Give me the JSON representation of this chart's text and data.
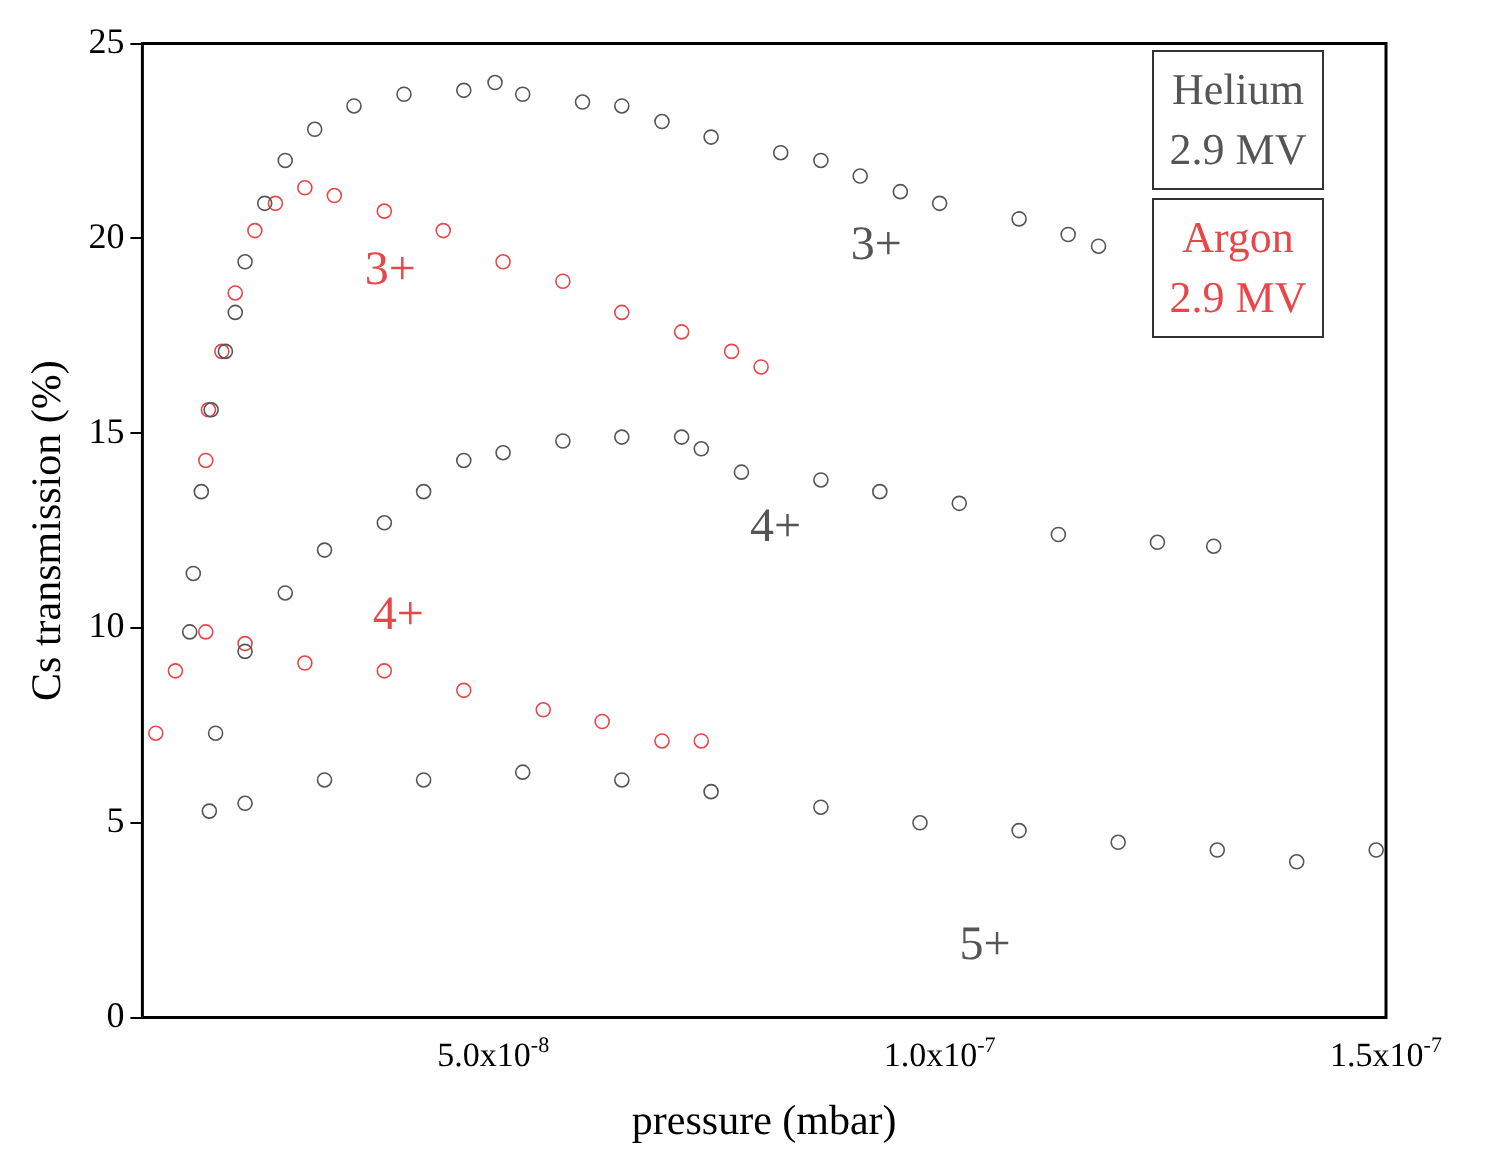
{
  "chart_data": {
    "type": "scatter",
    "xlabel": "pressure (mbar)",
    "ylabel": "Cs transmission (%)",
    "xlim": [
      1.07e-08,
      1.5e-07
    ],
    "xticks": [
      {
        "value": 5e-08,
        "label": "5.0x10$^{-8}$"
      },
      {
        "value": 1e-07,
        "label": "1.0x10$^{-7}$"
      },
      {
        "value": 1.5e-07,
        "label": "1.5x10$^{-7}$"
      }
    ],
    "ylim": [
      0,
      25
    ],
    "yticks": [
      0,
      5,
      10,
      15,
      20,
      25
    ],
    "grid": false,
    "legend": false,
    "marker": "circle",
    "annotations": [
      "Helium 2.9 MV",
      "Argon 2.9 MV"
    ],
    "series": [
      {
        "name": "3+",
        "color": "#555555",
        "x": [
          1.6e-08,
          1.64e-08,
          1.73e-08,
          1.84e-08,
          2e-08,
          2.11e-08,
          2.22e-08,
          2.44e-08,
          2.67e-08,
          3e-08,
          3.44e-08,
          4e-08,
          4.67e-08,
          5.02e-08,
          5.33e-08,
          6e-08,
          6.44e-08,
          6.89e-08,
          7.44e-08,
          8.22e-08,
          8.67e-08,
          9.11e-08,
          9.56e-08,
          1e-07,
          1.089e-07,
          1.144e-07,
          1.178e-07
        ],
        "values": [
          9.9,
          11.4,
          13.5,
          15.6,
          17.1,
          18.1,
          19.4,
          20.9,
          22.0,
          22.8,
          23.4,
          23.7,
          23.8,
          24.0,
          23.7,
          23.5,
          23.4,
          23.0,
          22.6,
          22.2,
          22.0,
          21.6,
          21.2,
          20.9,
          20.5,
          20.1,
          19.8
        ]
      },
      {
        "name": "4+",
        "color": "#555555",
        "x": [
          1.89e-08,
          2.22e-08,
          2.67e-08,
          3.11e-08,
          3.78e-08,
          4.22e-08,
          4.67e-08,
          5.11e-08,
          5.78e-08,
          6.44e-08,
          7.11e-08,
          7.33e-08,
          7.78e-08,
          8.67e-08,
          9.33e-08,
          1.022e-07,
          1.133e-07,
          1.244e-07,
          1.307e-07
        ],
        "values": [
          7.3,
          9.4,
          10.9,
          12.0,
          12.7,
          13.5,
          14.3,
          14.5,
          14.8,
          14.9,
          14.9,
          14.6,
          14.0,
          13.8,
          13.5,
          13.2,
          12.4,
          12.2,
          12.1
        ]
      },
      {
        "name": "5+",
        "color": "#555555",
        "x": [
          1.82e-08,
          2.22e-08,
          3.11e-08,
          4.22e-08,
          5.33e-08,
          6.44e-08,
          7.44e-08,
          8.67e-08,
          9.78e-08,
          1.089e-07,
          1.2e-07,
          1.311e-07,
          1.4e-07,
          1.489e-07
        ],
        "values": [
          5.3,
          5.5,
          6.1,
          6.1,
          6.3,
          6.1,
          5.8,
          5.4,
          5.0,
          4.8,
          4.5,
          4.3,
          4.0,
          4.3
        ]
      },
      {
        "name": "3+",
        "color": "#e8474a",
        "x": [
          1.78e-08,
          1.81e-08,
          1.96e-08,
          2.11e-08,
          2.33e-08,
          2.56e-08,
          2.89e-08,
          3.22e-08,
          3.78e-08,
          4.44e-08,
          5.11e-08,
          5.78e-08,
          6.44e-08,
          7.11e-08,
          7.67e-08,
          8e-08
        ],
        "values": [
          14.3,
          15.6,
          17.1,
          18.6,
          20.2,
          20.9,
          21.3,
          21.1,
          20.7,
          20.2,
          19.4,
          18.9,
          18.1,
          17.6,
          17.1,
          16.7
        ]
      },
      {
        "name": "4+",
        "color": "#e8474a",
        "x": [
          1.22e-08,
          1.44e-08,
          1.78e-08,
          2.22e-08,
          2.89e-08,
          3.78e-08,
          4.67e-08,
          5.56e-08,
          6.22e-08,
          6.89e-08,
          7.33e-08
        ],
        "values": [
          7.3,
          8.9,
          9.9,
          9.6,
          9.1,
          8.9,
          8.4,
          7.9,
          7.6,
          7.1,
          7.1
        ]
      }
    ]
  }
}
